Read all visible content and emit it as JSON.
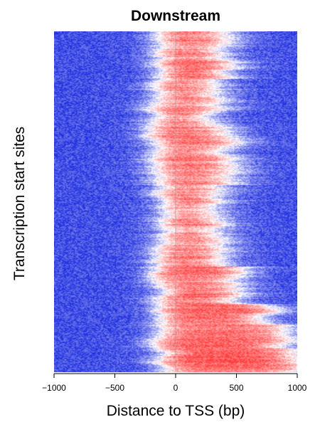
{
  "chart_data": {
    "type": "heatmap",
    "title": "Downstream",
    "xlabel": "Distance to TSS (bp)",
    "ylabel": "Transcription start sites",
    "xlim": [
      -1000,
      1000
    ],
    "x_ticks": [
      -1000,
      -500,
      0,
      500,
      1000
    ],
    "x_tick_labels": [
      "−1000",
      "−500",
      "0",
      "500",
      "1000"
    ],
    "reference_line_x": 0,
    "color_scale": {
      "low": "#1f2fe0",
      "mid": "#ffffff",
      "high": "#ff3a3a"
    },
    "grid": false,
    "legend": "none",
    "enriched_region_bands": [
      {
        "rows_from": 0.0,
        "rows_to": 0.03,
        "x_start": -150,
        "x_end": 420
      },
      {
        "rows_from": 0.03,
        "rows_to": 0.14,
        "x_start": -120,
        "x_end": 440
      },
      {
        "rows_from": 0.14,
        "rows_to": 0.22,
        "x_start": -130,
        "x_end": 330
      },
      {
        "rows_from": 0.22,
        "rows_to": 0.28,
        "x_start": -160,
        "x_end": 360
      },
      {
        "rows_from": 0.28,
        "rows_to": 0.33,
        "x_start": -180,
        "x_end": 470
      },
      {
        "rows_from": 0.33,
        "rows_to": 0.45,
        "x_start": -150,
        "x_end": 430
      },
      {
        "rows_from": 0.45,
        "rows_to": 0.52,
        "x_start": -110,
        "x_end": 330
      },
      {
        "rows_from": 0.52,
        "rows_to": 0.59,
        "x_start": -80,
        "x_end": 320
      },
      {
        "rows_from": 0.59,
        "rows_to": 0.65,
        "x_start": -100,
        "x_end": 360
      },
      {
        "rows_from": 0.65,
        "rows_to": 0.69,
        "x_start": -120,
        "x_end": 310
      },
      {
        "rows_from": 0.69,
        "rows_to": 0.74,
        "x_start": -160,
        "x_end": 520
      },
      {
        "rows_from": 0.74,
        "rows_to": 0.8,
        "x_start": -140,
        "x_end": 560
      },
      {
        "rows_from": 0.8,
        "rows_to": 0.86,
        "x_start": -120,
        "x_end": 720
      },
      {
        "rows_from": 0.86,
        "rows_to": 0.93,
        "x_start": -110,
        "x_end": 900
      },
      {
        "rows_from": 0.93,
        "rows_to": 1.0,
        "x_start": -120,
        "x_end": 1000
      }
    ],
    "rows": 400
  }
}
